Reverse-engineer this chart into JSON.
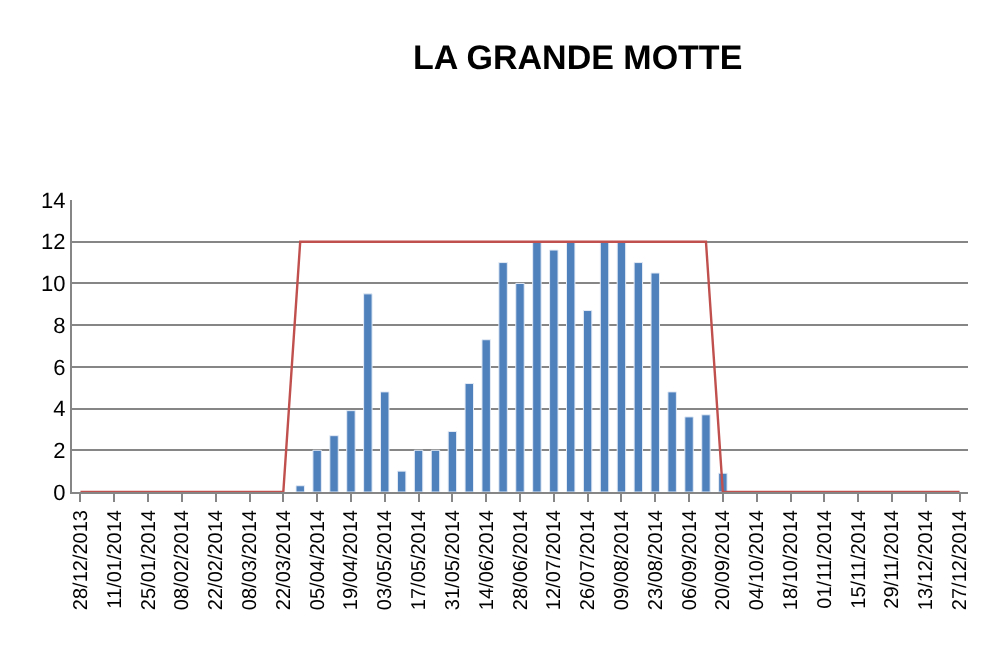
{
  "chart_data": {
    "type": "bar",
    "title": "LA GRANDE MOTTE",
    "categories": [
      "28/12/2013",
      null,
      "11/01/2014",
      null,
      "25/01/2014",
      null,
      "08/02/2014",
      null,
      "22/02/2014",
      null,
      "08/03/2014",
      null,
      "22/03/2014",
      null,
      "05/04/2014",
      null,
      "19/04/2014",
      null,
      "03/05/2014",
      null,
      "17/05/2014",
      null,
      "31/05/2014",
      null,
      "14/06/2014",
      null,
      "28/06/2014",
      null,
      "12/07/2014",
      null,
      "26/07/2014",
      null,
      "09/08/2014",
      null,
      "23/08/2014",
      null,
      "06/09/2014",
      null,
      "20/09/2014",
      null,
      "04/10/2014",
      null,
      "18/10/2014",
      null,
      "01/11/2014",
      null,
      "15/11/2014",
      null,
      "29/11/2014",
      null,
      "13/12/2014",
      null,
      "27/12/2014"
    ],
    "series": [
      {
        "color": "#4f81bd",
        "values": [
          null,
          null,
          null,
          null,
          null,
          null,
          null,
          null,
          null,
          null,
          null,
          null,
          null,
          0.3,
          2.0,
          2.7,
          3.9,
          9.5,
          4.8,
          1.0,
          2.0,
          2.0,
          2.9,
          5.2,
          7.3,
          11.0,
          10.0,
          12.0,
          11.6,
          12.0,
          8.7,
          12.0,
          12.0,
          11.0,
          10.5,
          4.8,
          3.6,
          3.7,
          0.9,
          null,
          null,
          null,
          null,
          null,
          null,
          null,
          null,
          null,
          null,
          null,
          null,
          null,
          null
        ]
      },
      {
        "type": "line",
        "color": "#c0504d",
        "values": [
          0,
          0,
          0,
          0,
          0,
          0,
          0,
          0,
          0,
          0,
          0,
          0,
          0,
          12,
          12,
          12,
          12,
          12,
          12,
          12,
          12,
          12,
          12,
          12,
          12,
          12,
          12,
          12,
          12,
          12,
          12,
          12,
          12,
          12,
          12,
          12,
          12,
          12,
          0,
          0,
          0,
          0,
          0,
          0,
          0,
          0,
          0,
          0,
          0,
          0,
          0,
          0,
          0
        ]
      }
    ],
    "ylim": [
      0,
      14
    ],
    "yticks": [
      0,
      2,
      4,
      6,
      8,
      10,
      12,
      14
    ],
    "grid": "y",
    "marker": "none"
  }
}
